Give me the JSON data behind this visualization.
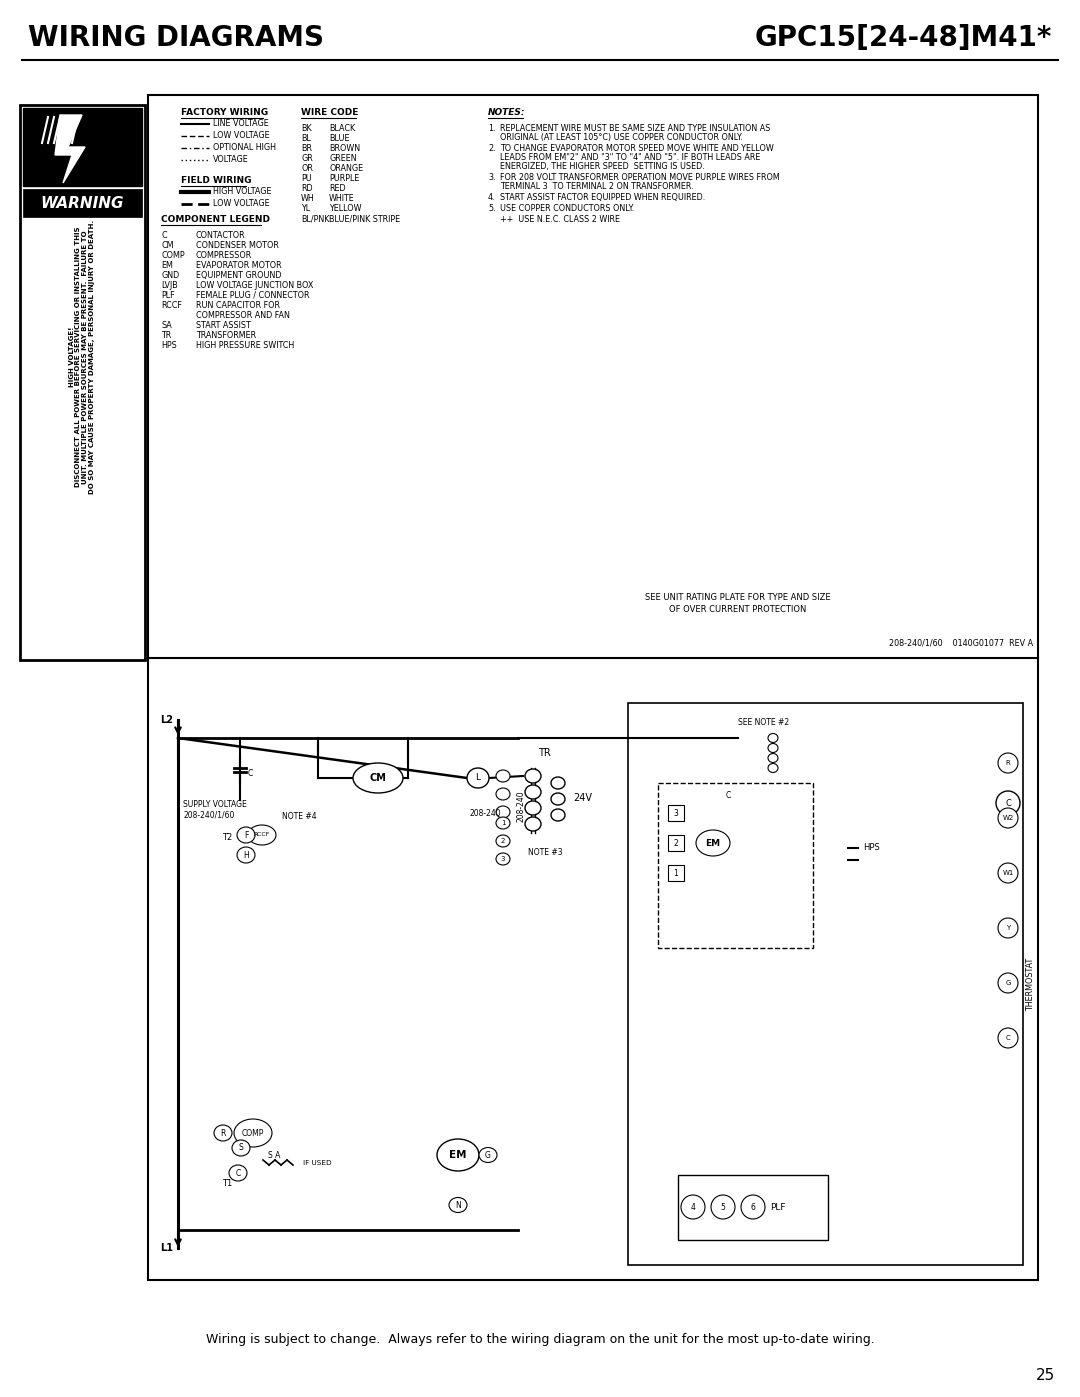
{
  "title_left": "WIRING DIAGRAMS",
  "title_right": "GPC15[24-48]M41*",
  "footer_text": "Wiring is subject to change.  Always refer to the wiring diagram on the unit for the most up-to-date wiring.",
  "page_number": "25",
  "bg_color": "#ffffff",
  "warning_lines": [
    "HIGH VOLTAGE!",
    "DISCONNECT ALL POWER BEFORE SERVICING OR INSTALLING THIS",
    "UNIT. MULTIPLE POWER SOURCES MAY BE PRESENT.  FAILURE TO",
    "DO SO MAY CAUSE PROPERTY DAMAGE, PERSONAL INJURY OR DEATH."
  ],
  "factory_wiring_entries": [
    {
      "style": "solid",
      "label": "LINE VOLTAGE"
    },
    {
      "style": "dashed",
      "label": "LOW VOLTAGE"
    },
    {
      "style": "dotdash",
      "label": "OPTIONAL HIGH"
    },
    {
      "style": "dotted",
      "label": "VOLTAGE"
    }
  ],
  "field_wiring_entries": [
    {
      "style": "solid_thick",
      "label": "HIGH VOLTAGE"
    },
    {
      "style": "dashed_thick",
      "label": "LOW VOLTAGE"
    }
  ],
  "wire_codes": [
    [
      "BK",
      "BLACK"
    ],
    [
      "BL",
      "BLUE"
    ],
    [
      "BR",
      "BROWN"
    ],
    [
      "GR",
      "GREEN"
    ],
    [
      "OR",
      "ORANGE"
    ],
    [
      "PU",
      "PURPLE"
    ],
    [
      "RD",
      "RED"
    ],
    [
      "WH",
      "WHITE"
    ],
    [
      "YL",
      "YELLOW"
    ],
    [
      "BL/PNK",
      "BLUE/PINK STRIPE"
    ]
  ],
  "components": [
    [
      "C",
      "CONTACTOR"
    ],
    [
      "CM",
      "CONDENSER MOTOR"
    ],
    [
      "COMP",
      "COMPRESSOR"
    ],
    [
      "EM",
      "EVAPORATOR MOTOR"
    ],
    [
      "GND",
      "EQUIPMENT GROUND"
    ],
    [
      "LVJB",
      "LOW VOLTAGE JUNCTION BOX"
    ],
    [
      "PLF",
      "FEMALE PLUG / CONNECTOR"
    ],
    [
      "RCCF",
      "RUN CAPACITOR FOR"
    ],
    [
      "",
      "COMPRESSOR AND FAN"
    ],
    [
      "SA",
      "START ASSIST"
    ],
    [
      "TR",
      "TRANSFORMER"
    ],
    [
      "HPS",
      "HIGH PRESSURE SWITCH"
    ]
  ],
  "notes": [
    "REPLACEMENT WIRE MUST BE SAME SIZE AND TYPE INSULATION AS",
    "ORIGINAL (AT LEAST 105°C) USE COPPER CONDUCTOR ONLY.",
    "TO CHANGE EVAPORATOR MOTOR SPEED MOVE WHITE AND YELLOW",
    "LEADS FROM EM\"2\" AND \"3\" TO \"4\" AND \"5\". IF BOTH LEADS ARE",
    "ENERGIZED, THE HIGHER SPEED  SETTING IS USED.",
    "FOR 208 VOLT TRANSFORMER OPERATION MOVE PURPLE WIRES FROM",
    "TERMINAL 3  TO TERMINAL 2 ON TRANSFORMER.",
    "START ASSIST FACTOR EQUIPPED WHEN REQUIRED.",
    "USE COPPER CONDUCTORS ONLY.",
    "++ USE N.E.C. CLASS 2 WIRE"
  ],
  "bottom_note1": "SEE UNIT RATING PLATE FOR TYPE AND SIZE",
  "bottom_note2": "OF OVER CURRENT PROTECTION",
  "part_number": "208-240/1/60    0140G01077  REV A",
  "supply_voltage_line1": "SUPPLY VOLTAGE",
  "supply_voltage_line2": "208-240/1/60"
}
